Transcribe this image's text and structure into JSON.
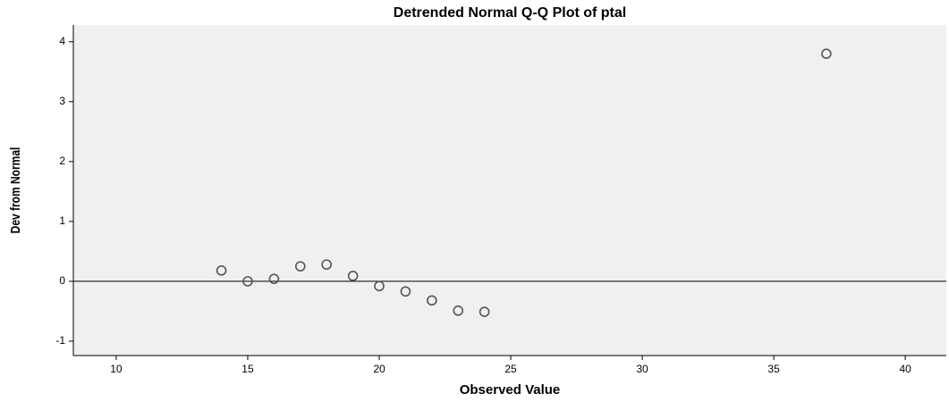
{
  "chart_data": {
    "type": "scatter",
    "title": "Detrended Normal Q-Q Plot of ptal",
    "xlabel": "Observed Value",
    "ylabel": "Dev from Normal",
    "x": [
      14,
      15,
      16,
      17,
      18,
      19,
      20,
      21,
      22,
      23,
      24,
      37
    ],
    "values": [
      0.18,
      0.0,
      0.04,
      0.25,
      0.28,
      0.09,
      -0.08,
      -0.17,
      -0.32,
      -0.49,
      -0.51,
      3.8
    ],
    "color": "#555555",
    "xlim": [
      8.37,
      41.56
    ],
    "xticks": [
      10,
      15,
      20,
      25,
      30,
      35,
      40
    ],
    "ylim": [
      -1.24,
      4.28
    ],
    "yticks": [
      -1,
      0,
      1,
      2,
      3,
      4
    ],
    "reference_line": 0
  }
}
